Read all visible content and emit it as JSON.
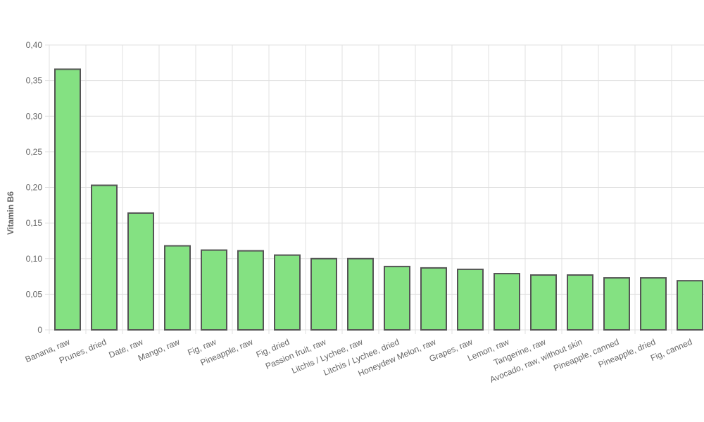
{
  "chart_data": {
    "type": "bar",
    "y_label": "Vitamin B6",
    "categories": [
      "Banana, raw",
      "Prunes, dried",
      "Date, raw",
      "Mango, raw",
      "Fig, raw",
      "Pineapple, raw",
      "Fig, dried",
      "Passion fruit, raw",
      "Litchis / Lychee, raw",
      "Litchis / Lychee, dried",
      "Honeydew Melon, raw",
      "Grapes, raw",
      "Lemon, raw",
      "Tangerine, raw",
      "Avocado, raw, without skin",
      "Pineapple, canned",
      "Pineapple, dried",
      "Fig, canned"
    ],
    "values": [
      0.366,
      0.203,
      0.164,
      0.118,
      0.112,
      0.111,
      0.105,
      0.1,
      0.1,
      0.089,
      0.087,
      0.085,
      0.079,
      0.077,
      0.077,
      0.073,
      0.073,
      0.069
    ],
    "color": "#84e182",
    "ylim": [
      0,
      0.4
    ],
    "yticks": [
      0,
      {
        "value": 0.05,
        "label": "0,05"
      },
      {
        "value": 0.1,
        "label": "0,10"
      },
      {
        "value": 0.15,
        "label": "0,15"
      },
      {
        "value": 0.2,
        "label": "0,20"
      },
      {
        "value": 0.25,
        "label": "0,25"
      },
      {
        "value": 0.3,
        "label": "0,30"
      },
      {
        "value": 0.35,
        "label": "0,35"
      },
      {
        "value": 0.4,
        "label": "0,40"
      }
    ],
    "grid": true
  }
}
